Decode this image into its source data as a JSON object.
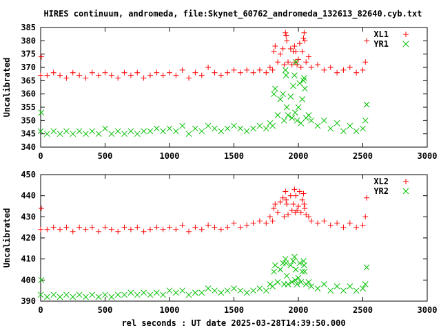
{
  "title": "HIRES continuum, andromeda, file:Skynet_60762_andromeda_132613_82640.cyb.txt",
  "chart_data": [
    {
      "type": "scatter",
      "ylabel": "Uncalibrated",
      "xlim": [
        0,
        3000
      ],
      "ylim": [
        340,
        385
      ],
      "xticks": [
        0,
        500,
        1000,
        1500,
        2000,
        2500,
        3000
      ],
      "yticks": [
        340,
        345,
        350,
        355,
        360,
        365,
        370,
        375,
        380,
        385
      ],
      "legend_position": "top-right",
      "series": [
        {
          "name": "XL1",
          "marker": "+",
          "color": "#ff0000",
          "x": [
            0,
            5,
            50,
            100,
            150,
            200,
            250,
            300,
            350,
            400,
            450,
            500,
            550,
            600,
            650,
            700,
            750,
            800,
            850,
            900,
            950,
            1000,
            1050,
            1100,
            1150,
            1200,
            1250,
            1300,
            1350,
            1400,
            1450,
            1500,
            1550,
            1600,
            1650,
            1700,
            1750,
            1780,
            1800,
            1810,
            1820,
            1840,
            1860,
            1880,
            1890,
            1900,
            1905,
            1910,
            1920,
            1940,
            1950,
            1960,
            1970,
            1975,
            1980,
            1990,
            2000,
            2010,
            2020,
            2030,
            2040,
            2045,
            2050,
            2060,
            2080,
            2100,
            2150,
            2200,
            2250,
            2300,
            2350,
            2400,
            2450,
            2500,
            2520,
            2530
          ],
          "y": [
            367,
            374,
            367,
            368,
            367,
            366,
            368,
            367,
            366,
            368,
            367,
            368,
            367,
            366,
            368,
            367,
            368,
            366,
            367,
            368,
            367,
            368,
            367,
            369,
            366,
            368,
            367,
            370,
            368,
            367,
            368,
            369,
            368,
            369,
            368,
            369,
            368,
            370,
            369,
            376,
            378,
            372,
            375,
            377,
            371,
            383,
            382,
            380,
            372,
            377,
            371,
            376,
            378,
            372,
            376,
            371,
            373,
            379,
            370,
            376,
            381,
            383,
            380,
            372,
            374,
            370,
            371,
            369,
            370,
            368,
            369,
            370,
            368,
            369,
            372,
            380
          ]
        },
        {
          "name": "YR1",
          "marker": "x",
          "color": "#00c000",
          "x": [
            0,
            5,
            50,
            100,
            150,
            200,
            250,
            300,
            350,
            400,
            450,
            500,
            550,
            600,
            650,
            700,
            750,
            800,
            850,
            900,
            950,
            1000,
            1050,
            1100,
            1150,
            1200,
            1250,
            1300,
            1350,
            1400,
            1450,
            1500,
            1550,
            1600,
            1650,
            1700,
            1750,
            1780,
            1800,
            1810,
            1820,
            1840,
            1860,
            1880,
            1890,
            1900,
            1905,
            1910,
            1920,
            1940,
            1950,
            1960,
            1970,
            1975,
            1980,
            1990,
            2000,
            2010,
            2020,
            2030,
            2040,
            2045,
            2050,
            2060,
            2080,
            2100,
            2150,
            2200,
            2250,
            2300,
            2350,
            2400,
            2450,
            2500,
            2520,
            2530
          ],
          "y": [
            346,
            353,
            345,
            346,
            345,
            346,
            345,
            346,
            345,
            346,
            345,
            347,
            345,
            346,
            345,
            346,
            345,
            346,
            346,
            347,
            346,
            347,
            346,
            348,
            345,
            347,
            346,
            348,
            347,
            346,
            347,
            348,
            347,
            346,
            347,
            348,
            347,
            349,
            348,
            360,
            362,
            352,
            358,
            360,
            350,
            369,
            367,
            355,
            352,
            359,
            351,
            363,
            367,
            353,
            372,
            350,
            355,
            364,
            349,
            358,
            365,
            366,
            362,
            351,
            352,
            350,
            348,
            350,
            347,
            349,
            346,
            348,
            346,
            347,
            350,
            356
          ]
        }
      ]
    },
    {
      "type": "scatter",
      "ylabel": "Uncalibrated",
      "xlabel": "rel seconds : UT date 2025-03-28T14:39:50.000",
      "xlim": [
        0,
        3000
      ],
      "ylim": [
        390,
        450
      ],
      "xticks": [
        0,
        500,
        1000,
        1500,
        2000,
        2500,
        3000
      ],
      "yticks": [
        390,
        400,
        410,
        420,
        430,
        440,
        450
      ],
      "legend_position": "top-right",
      "series": [
        {
          "name": "XL2",
          "marker": "+",
          "color": "#ff0000",
          "x": [
            0,
            5,
            50,
            100,
            150,
            200,
            250,
            300,
            350,
            400,
            450,
            500,
            550,
            600,
            650,
            700,
            750,
            800,
            850,
            900,
            950,
            1000,
            1050,
            1100,
            1150,
            1200,
            1250,
            1300,
            1350,
            1400,
            1450,
            1500,
            1550,
            1600,
            1650,
            1700,
            1750,
            1780,
            1800,
            1810,
            1820,
            1840,
            1860,
            1880,
            1890,
            1900,
            1905,
            1910,
            1920,
            1940,
            1950,
            1960,
            1970,
            1975,
            1980,
            1990,
            2000,
            2010,
            2020,
            2030,
            2040,
            2045,
            2050,
            2060,
            2080,
            2100,
            2150,
            2200,
            2250,
            2300,
            2350,
            2400,
            2450,
            2500,
            2520,
            2530
          ],
          "y": [
            424,
            434,
            424,
            425,
            424,
            425,
            423,
            425,
            424,
            425,
            423,
            425,
            424,
            423,
            425,
            424,
            425,
            423,
            424,
            425,
            424,
            425,
            424,
            426,
            423,
            425,
            424,
            426,
            425,
            424,
            425,
            427,
            425,
            426,
            427,
            428,
            427,
            430,
            428,
            434,
            436,
            432,
            437,
            439,
            430,
            442,
            438,
            436,
            431,
            440,
            433,
            436,
            443,
            432,
            440,
            433,
            435,
            442,
            432,
            438,
            441,
            436,
            434,
            431,
            430,
            428,
            427,
            428,
            426,
            427,
            425,
            427,
            425,
            426,
            430,
            439
          ]
        },
        {
          "name": "YR2",
          "marker": "x",
          "color": "#00c000",
          "x": [
            0,
            5,
            50,
            100,
            150,
            200,
            250,
            300,
            350,
            400,
            450,
            500,
            550,
            600,
            650,
            700,
            750,
            800,
            850,
            900,
            950,
            1000,
            1050,
            1100,
            1150,
            1200,
            1250,
            1300,
            1350,
            1400,
            1450,
            1500,
            1550,
            1600,
            1650,
            1700,
            1750,
            1780,
            1800,
            1810,
            1820,
            1840,
            1860,
            1880,
            1890,
            1900,
            1905,
            1910,
            1920,
            1940,
            1950,
            1960,
            1970,
            1975,
            1980,
            1990,
            2000,
            2010,
            2020,
            2030,
            2040,
            2045,
            2050,
            2060,
            2080,
            2100,
            2150,
            2200,
            2250,
            2300,
            2350,
            2400,
            2450,
            2500,
            2520,
            2530
          ],
          "y": [
            393,
            400,
            392,
            393,
            392,
            393,
            392,
            393,
            392,
            393,
            392,
            393,
            392,
            393,
            393,
            394,
            393,
            394,
            393,
            394,
            393,
            395,
            394,
            395,
            393,
            394,
            394,
            396,
            395,
            394,
            395,
            396,
            395,
            394,
            395,
            396,
            395,
            398,
            397,
            404,
            407,
            399,
            405,
            408,
            398,
            410,
            408,
            402,
            398,
            407,
            399,
            409,
            411,
            400,
            405,
            398,
            401,
            408,
            399,
            404,
            409,
            407,
            404,
            398,
            399,
            397,
            396,
            398,
            395,
            397,
            395,
            397,
            395,
            396,
            398,
            406
          ]
        }
      ]
    }
  ]
}
